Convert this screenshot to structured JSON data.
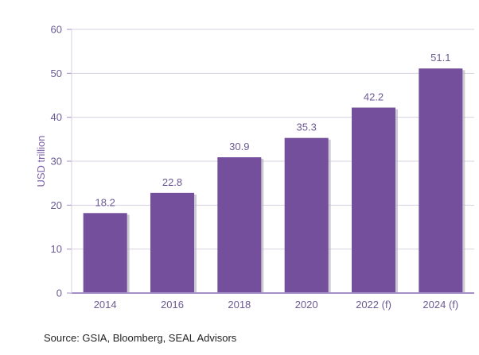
{
  "chart_data": {
    "type": "bar",
    "title": "",
    "xlabel": "",
    "ylabel": "USD trillion",
    "categories": [
      "2014",
      "2016",
      "2018",
      "2020",
      "2022 (f)",
      "2024 (f)"
    ],
    "values": [
      18.2,
      22.8,
      30.9,
      35.3,
      42.2,
      51.1
    ],
    "data_labels": [
      "18.2",
      "22.8",
      "30.9",
      "35.3",
      "42.2",
      "51.1"
    ],
    "ylim": [
      0,
      60
    ],
    "yticks": [
      0,
      10,
      20,
      30,
      40,
      50,
      60
    ],
    "grid": true,
    "legend": "none",
    "colors": {
      "bar": "#744f9c",
      "bar_shadow": "#b9b4c2",
      "grid": "#d7d1e2",
      "axis": "#a48fc6",
      "text": "#6b5a94"
    }
  },
  "source_text": "Source: GSIA, Bloomberg, SEAL Advisors"
}
